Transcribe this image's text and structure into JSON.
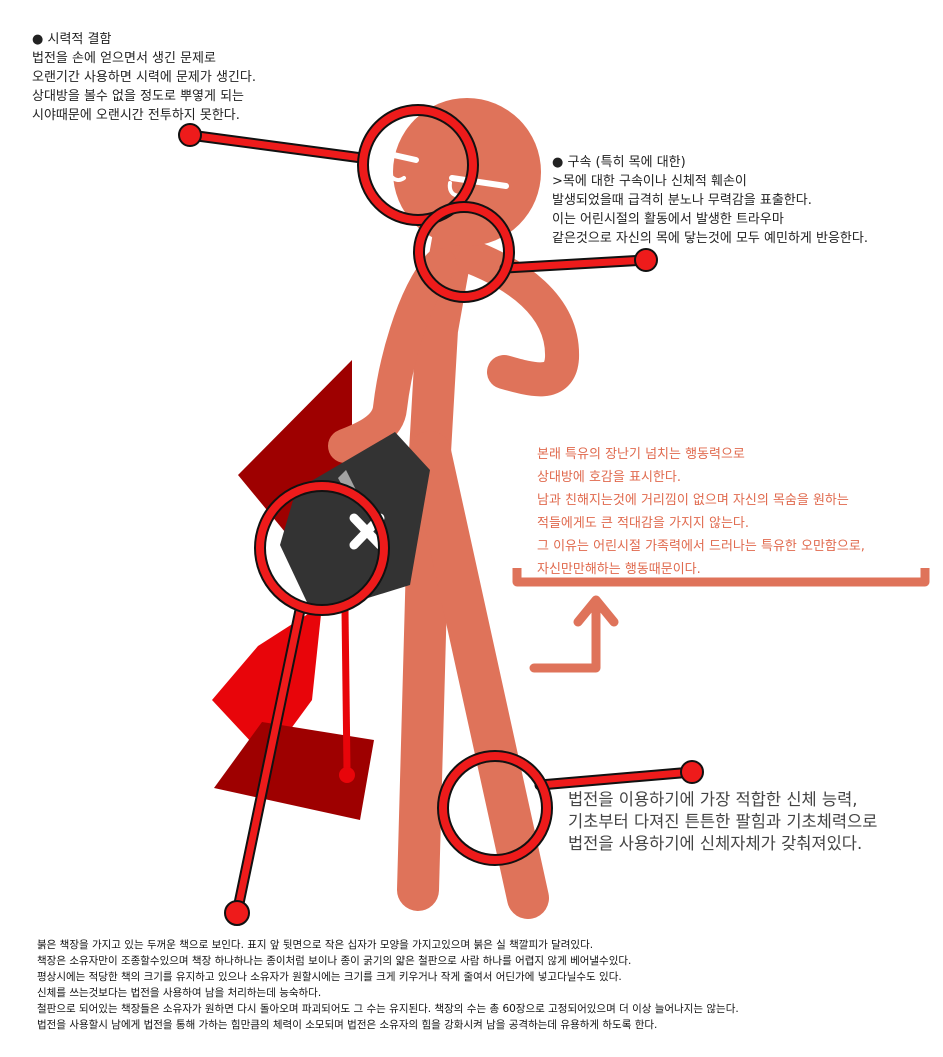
{
  "colors": {
    "skin": "#df735a",
    "lens": "#ee1b1b",
    "book": "#333333",
    "page_red": "#e8050a",
    "page_dark": "#9e0000",
    "personality_text": "#e06a4e"
  },
  "notes": {
    "eyes": {
      "bullet": "●",
      "title": "시력적 결함",
      "lines": [
        "법전을 손에 얻으면서 생긴 문제로",
        "오랜기간 사용하면 시력에 문제가 생긴다.",
        "상대방을 볼수 없을 정도로 뿌옇게 되는",
        "시야때문에 오랜시간 전투하지 못한다."
      ]
    },
    "neck": {
      "bullet": "●",
      "title": "구속 (특히 목에 대한)",
      "lines": [
        ">목에 대한 구속이나 신체적 훼손이",
        "발생되었을때 급격히 분노나 무력감을 표출한다.",
        "이는 어린시절의 활동에서 발생한 트라우마",
        "같은것으로 자신의 목에 닿는것에 모두 예민하게 반응한다."
      ]
    },
    "personality": {
      "lines": [
        "본래 특유의 장난기 넘치는 행동력으로",
        "상대방에 호감을 표시한다.",
        "남과 친해지는것에 거리낌이 없으며 자신의 목숨을 원하는",
        "적들에게도 큰 적대감을 가지지 않는다.",
        "그 이유는 어린시절 가족력에서 드러나는 특유한 오만함으로,",
        "자신만만해하는 행동때문이다."
      ]
    },
    "body": {
      "lines": [
        "법전을 이용하기에 가장 적합한 신체 능력,",
        "기초부터 다져진 튼튼한 팔힘과 기초체력으로",
        "법전을 사용하기에 신체자체가 갖춰져있다."
      ]
    },
    "book": {
      "lines": [
        "붉은 책장을 가지고 있는 두꺼운 책으로 보인다. 표지 앞 뒷면으로 작은 십자가 모양을 가지고있으며 붉은 실 책깔피가 달려있다.",
        "책장은 소유자만이 조종할수있으며 책장 하나하나는 종이처럼 보이나 종이 굵기의 얇은 철판으로 사람 하나를 어렵지 않게 베어낼수있다.",
        "평상시에는 적당한 책의 크기를 유지하고 있으나 소유자가 원할시에는 크기를 크게 키우거나 작게 줄여서 어딘가에 넣고다닐수도 있다.",
        "신체를 쓰는것보다는 법전을 사용하여 남을 처리하는데 능숙하다.",
        "철판으로 되어있는 책장들은 소유자가 원하면 다시 돌아오며 파괴되어도 그 수는 유지된다. 책장의 수는 총 60장으로 고정되어있으며 더 이상 늘어나지는 않는다.",
        "법전을 사용할시 남에게 법전을 통해 가하는 힘만큼의 체력이 소모되며 법전은 소유자의 힘을 강화시켜 남을 공격하는데 유용하게 하도록 한다."
      ]
    }
  }
}
